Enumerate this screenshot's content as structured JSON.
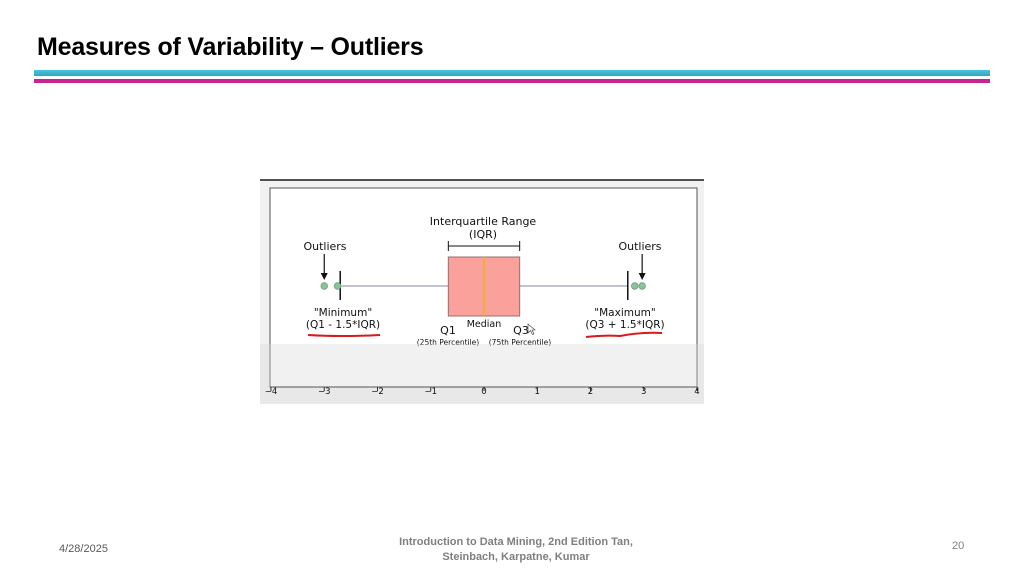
{
  "slide": {
    "title": "Measures of Variability – Outliers",
    "footer": {
      "date": "4/28/2025",
      "source_line1": "Introduction to Data Mining, 2nd Edition   Tan,",
      "source_line2": "Steinbach, Karpatne, Kumar",
      "page_number": "20"
    }
  },
  "figure": {
    "iqr_title": "Interquartile Range",
    "iqr_abbrev": "(IQR)",
    "outliers_left": "Outliers",
    "outliers_right": "Outliers",
    "minimum_label": "\"Minimum\"",
    "minimum_formula": "(Q1 - 1.5*IQR)",
    "maximum_label": "\"Maximum\"",
    "maximum_formula": "(Q3 + 1.5*IQR)",
    "q1_label": "Q1",
    "median_label": "Median",
    "q3_label": "Q3",
    "q1_percentile": "(25th Percentile)",
    "q3_percentile": "(75th Percentile)"
  },
  "chart_data": {
    "type": "boxplot",
    "orientation": "horizontal",
    "xlim": [
      -4,
      4
    ],
    "xticks": [
      -4,
      -3,
      -2,
      -1,
      0,
      1,
      2,
      3,
      4
    ],
    "x_tick_labels": [
      "−4",
      "−3",
      "−2",
      "−1",
      "0",
      "1",
      "2",
      "3",
      "4"
    ],
    "q1": -0.67,
    "median": 0,
    "q3": 0.67,
    "whisker_low": -2.7,
    "whisker_high": 2.7,
    "outliers": [
      -3.0,
      -2.75,
      2.83,
      2.97
    ],
    "colors": {
      "box_fill": "#f9a19a",
      "box_edge": "#9a6e6e",
      "median": "#e8b320",
      "whisker": "#9aa0b4",
      "outlier": "#8cc49a",
      "underline": "#d91a1a"
    }
  }
}
